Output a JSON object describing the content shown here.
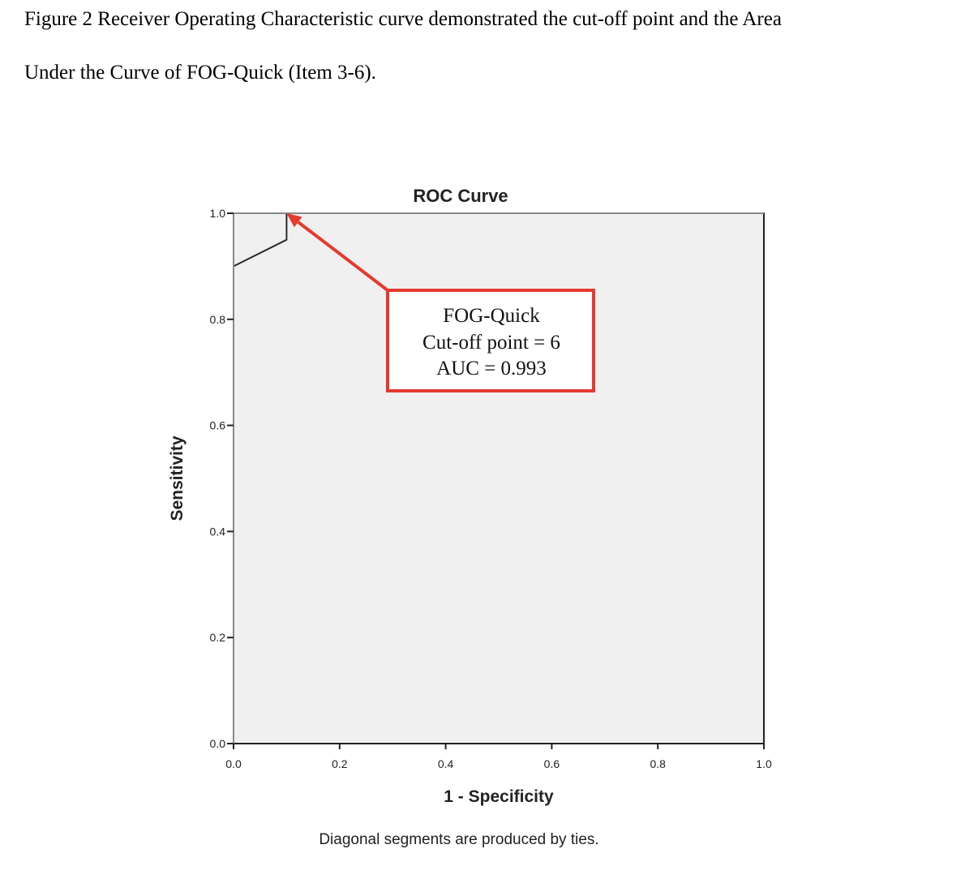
{
  "caption": {
    "line1": "Figure 2 Receiver Operating Characteristic curve demonstrated the cut-off point and the Area",
    "line2": "Under the Curve of FOG-Quick (Item 3-6)."
  },
  "chart_data": {
    "type": "line",
    "title": "ROC Curve",
    "xlabel": "1 - Specificity",
    "ylabel": "Sensitivity",
    "xlim": [
      0,
      1
    ],
    "ylim": [
      0,
      1
    ],
    "x_ticks": [
      "0.0",
      "0.2",
      "0.4",
      "0.6",
      "0.8",
      "1.0"
    ],
    "y_ticks": [
      "0.0",
      "0.2",
      "0.4",
      "0.6",
      "0.8",
      "1.0"
    ],
    "grid": false,
    "footnote": "Diagonal segments are produced by ties.",
    "series": [
      {
        "x": [
          0.0,
          0.0,
          0.1,
          0.1,
          1.0
        ],
        "y": [
          0.0,
          0.9,
          0.95,
          1.0,
          1.0
        ],
        "color": "#2b2b2b"
      },
      {
        "x": [
          0.0,
          0.0,
          1.0
        ],
        "y": [
          0.0,
          1.0,
          1.0
        ],
        "color": "#888888"
      }
    ],
    "annotation": {
      "lines": [
        "FOG-Quick",
        "Cut-off point = 6",
        "AUC = 0.993"
      ],
      "point": [
        0.1,
        1.0
      ],
      "box_color": "#e53a2f",
      "arrow_color": "#e53a2f"
    },
    "plot_background": "#f0f0f0"
  }
}
